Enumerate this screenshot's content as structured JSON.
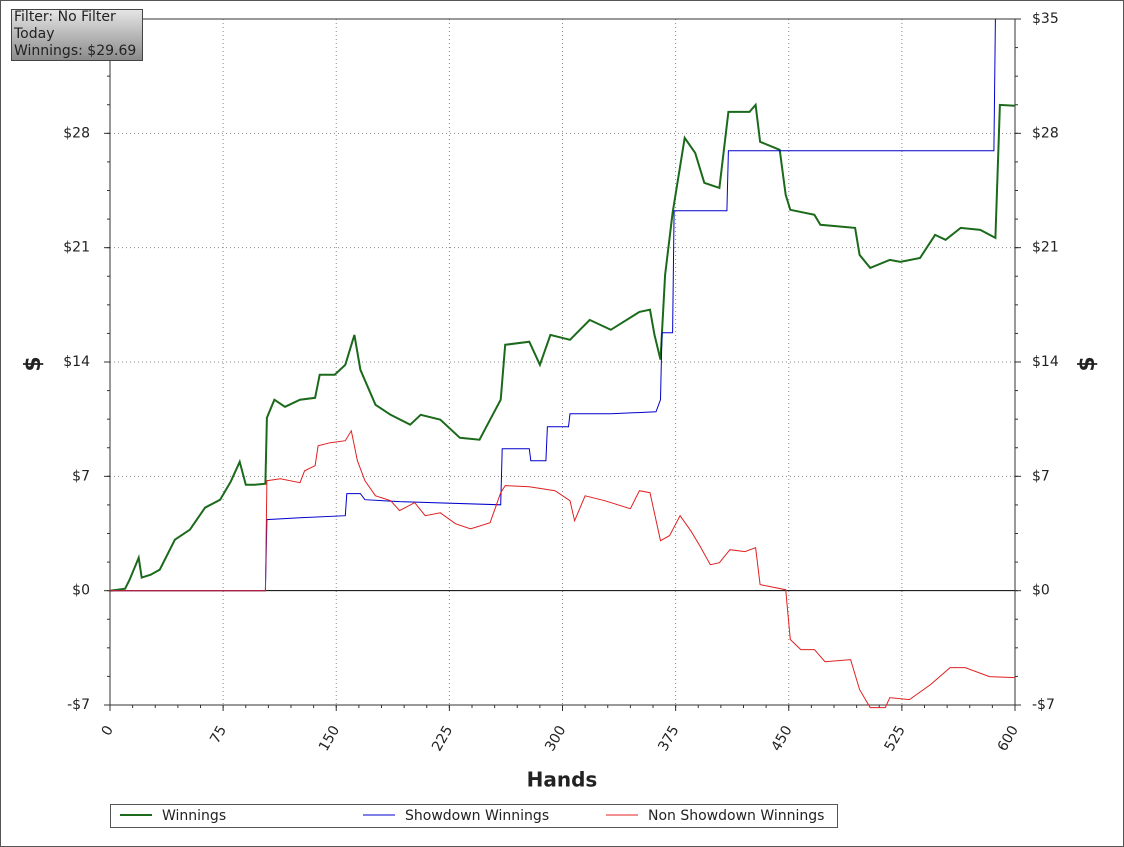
{
  "chart_data": {
    "type": "line",
    "info": [
      "Filter: No Filter",
      "Today",
      "Winnings: $29.69"
    ],
    "x_label": "Hands",
    "y_label": "$",
    "xlim": [
      0,
      600
    ],
    "xticks": [
      0,
      75,
      150,
      225,
      300,
      375,
      450,
      525,
      600
    ],
    "ylim": [
      -7,
      35
    ],
    "yticks": [
      {
        "value": -7,
        "label": "-$7"
      },
      {
        "value": 0,
        "label": "$0"
      },
      {
        "value": 7,
        "label": "$7"
      },
      {
        "value": 14,
        "label": "$14"
      },
      {
        "value": 21,
        "label": "$21"
      },
      {
        "value": 28,
        "label": "$28"
      },
      {
        "value": 35,
        "label": "$35"
      }
    ],
    "grid": true,
    "series": [
      {
        "name": "Winnings",
        "color": "#1b6a1b",
        "x": [
          0,
          10,
          13,
          19,
          21,
          27,
          33,
          43,
          53,
          63,
          73,
          80,
          86,
          90,
          96,
          103,
          104,
          109,
          116,
          126,
          136,
          139,
          149,
          156,
          162,
          166,
          176,
          186,
          199,
          206,
          219,
          232,
          245,
          252,
          259,
          262,
          278,
          285,
          292,
          305,
          318,
          332,
          351,
          358,
          361,
          365,
          368,
          373,
          381,
          388,
          394,
          404,
          410,
          424,
          428,
          431,
          444,
          448,
          451,
          467,
          471,
          494,
          497,
          504,
          517,
          524,
          537,
          547,
          554,
          564,
          577,
          587,
          590,
          600
        ],
        "values": [
          0,
          0.12,
          0.67,
          2.02,
          0.8,
          0.98,
          1.29,
          3.12,
          3.73,
          5.08,
          5.57,
          6.67,
          7.89,
          6.49,
          6.49,
          6.55,
          10.59,
          11.69,
          11.26,
          11.69,
          11.81,
          13.22,
          13.22,
          13.83,
          15.66,
          13.52,
          11.38,
          10.77,
          10.16,
          10.77,
          10.47,
          9.36,
          9.24,
          10.47,
          11.69,
          15.05,
          15.24,
          13.83,
          15.66,
          15.36,
          16.58,
          15.97,
          17.07,
          17.2,
          15.66,
          14.14,
          19.33,
          23.13,
          27.72,
          26.8,
          24.97,
          24.66,
          29.31,
          29.31,
          29.74,
          27.48,
          26.99,
          24.23,
          23.32,
          23.01,
          22.4,
          22.21,
          20.56,
          19.76,
          20.25,
          20.13,
          20.37,
          21.78,
          21.48,
          22.21,
          22.09,
          21.6,
          29.74,
          29.69
        ]
      },
      {
        "name": "Showdown Winnings",
        "color": "#0000cc",
        "x": [
          0,
          103,
          104,
          126,
          156,
          157,
          166,
          169,
          192,
          259,
          260,
          278,
          279,
          289,
          290,
          304,
          305,
          332,
          362,
          365,
          366,
          373,
          374,
          409,
          410,
          586,
          587
        ],
        "values": [
          0,
          0,
          4.35,
          4.47,
          4.59,
          5.94,
          5.94,
          5.57,
          5.45,
          5.26,
          8.69,
          8.69,
          7.96,
          7.96,
          10.04,
          10.04,
          10.83,
          10.83,
          10.95,
          11.69,
          15.79,
          15.79,
          23.26,
          23.26,
          26.93,
          26.93,
          35
        ]
      },
      {
        "name": "Non Showdown Winnings",
        "color": "#e02020",
        "x": [
          0,
          103,
          104,
          113,
          126,
          129,
          136,
          138,
          146,
          156,
          160,
          164,
          169,
          176,
          186,
          192,
          202,
          209,
          219,
          229,
          239,
          252,
          259,
          262,
          278,
          295,
          305,
          308,
          315,
          328,
          345,
          351,
          358,
          365,
          371,
          378,
          385,
          391,
          398,
          404,
          411,
          421,
          428,
          431,
          448,
          451,
          458,
          467,
          474,
          491,
          497,
          504,
          514,
          517,
          530,
          544,
          557,
          567,
          583,
          600
        ],
        "values": [
          0,
          0,
          6.73,
          6.85,
          6.61,
          7.34,
          7.65,
          8.87,
          9.06,
          9.18,
          9.79,
          7.96,
          6.73,
          5.81,
          5.51,
          4.9,
          5.39,
          4.59,
          4.77,
          4.1,
          3.79,
          4.16,
          6.0,
          6.43,
          6.36,
          6.12,
          5.51,
          4.28,
          5.81,
          5.51,
          5.02,
          6.12,
          6.0,
          3.06,
          3.37,
          4.59,
          3.67,
          2.75,
          1.59,
          1.71,
          2.51,
          2.39,
          2.63,
          0.37,
          0.06,
          -2.99,
          -3.61,
          -3.61,
          -4.35,
          -4.22,
          -6.06,
          -7.16,
          -7.16,
          -6.55,
          -6.67,
          -5.75,
          -4.71,
          -4.71,
          -5.26,
          -5.32
        ]
      }
    ]
  }
}
